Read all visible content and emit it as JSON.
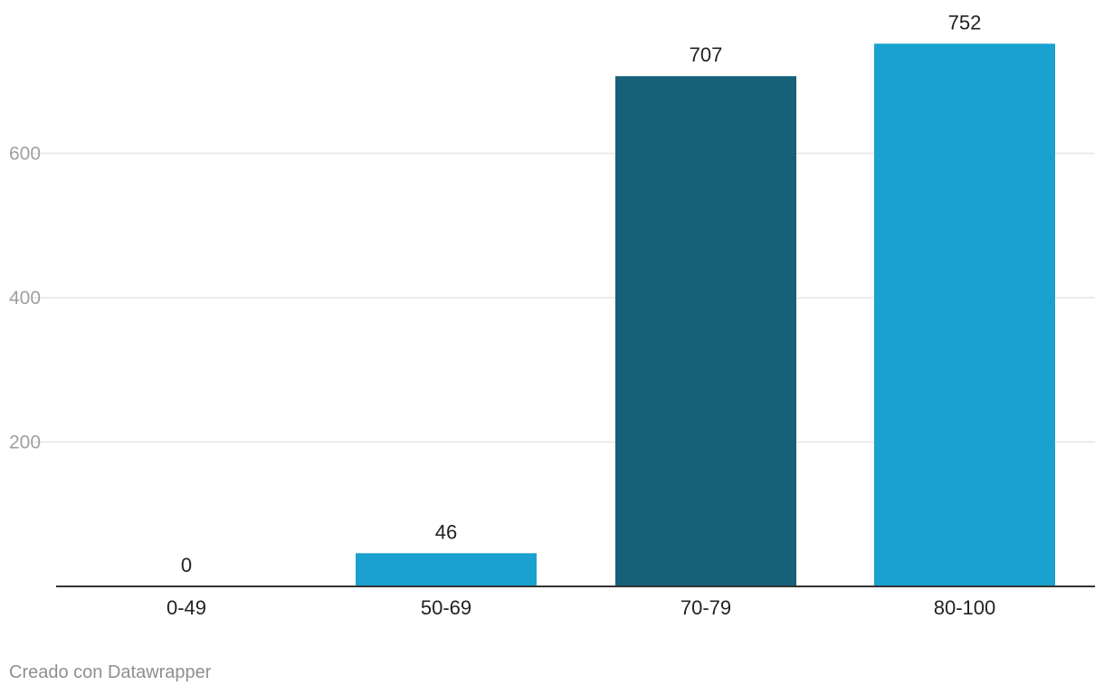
{
  "chart_data": {
    "type": "bar",
    "categories": [
      "0-49",
      "50-69",
      "70-79",
      "80-100"
    ],
    "values": [
      0,
      46,
      707,
      752
    ],
    "colors": [
      "#1aa1cf",
      "#1aa1cf",
      "#16607a",
      "#1aa1cf"
    ],
    "title": "",
    "xlabel": "",
    "ylabel": "",
    "ylim": [
      0,
      752
    ],
    "yticks": [
      200,
      400,
      600
    ],
    "ytick_labels": [
      "200",
      "400",
      "600"
    ],
    "grid": true,
    "data_labels": true
  },
  "colors": {
    "bar": "#1aa1cf",
    "bar_highlight": "#16607a",
    "gridline": "#e6e6e6",
    "axis_line": "#333333",
    "tick_label": "#a0a0a0",
    "category_label": "#222222",
    "value_label": "#222222",
    "credit": "#8f8f8f"
  },
  "credit": "Creado con Datawrapper"
}
